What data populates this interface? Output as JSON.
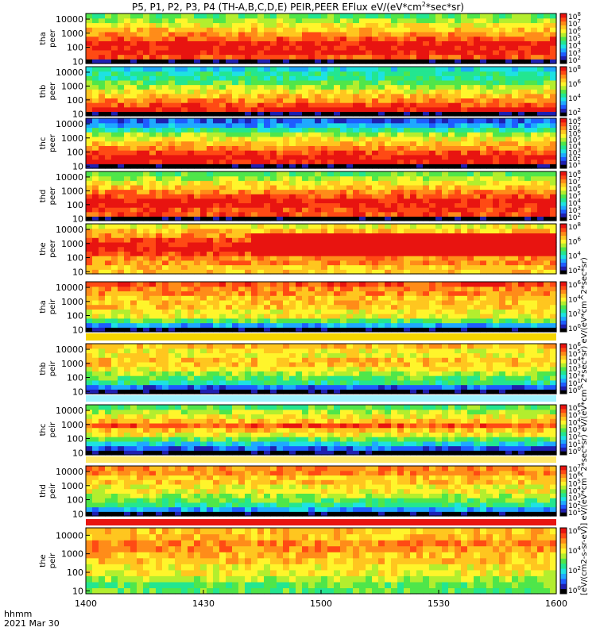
{
  "title": "P5, P1, P2, P3, P4 (TH-A,B,C,D,E) PEIR,PEER EFlux eV/(eV*cm²*sec*sr)",
  "colorbar_label": "[eV/(cm2-s-sr-eV)]  eV/(eV*cm^2*sec*sr)  eV/(eV*cm^2*sec*sr)  eV/(eV*cm^2*sec*sr)",
  "x_axis": {
    "time_format_label": "hhmm",
    "date_label": "2021 Mar 30",
    "tick_labels": [
      "1400",
      "1430",
      "1500",
      "1530",
      "1600"
    ]
  },
  "chart_data": {
    "type": "heatmap",
    "title": "P5, P1, P2, P3, P4 (TH-A,B,C,D,E) PEIR,PEER EFlux eV/(eV*cm^2*sec*sr)",
    "x": {
      "label": "hhmm",
      "start": "1400",
      "end": "1600",
      "ticks": [
        "1400",
        "1430",
        "1500",
        "1530",
        "1600"
      ]
    },
    "y_scale": "log",
    "panels": [
      {
        "ylabel": [
          "tha",
          "peer"
        ],
        "yticks": [
          "10",
          "100",
          "1000",
          "10000"
        ],
        "ylim": [
          7,
          25000
        ],
        "cbar_ticks": [
          {
            "base": "10",
            "exp": "2"
          },
          {
            "base": "10",
            "exp": "3"
          },
          {
            "base": "10",
            "exp": "4"
          },
          {
            "base": "10",
            "exp": "5"
          },
          {
            "base": "10",
            "exp": "6"
          },
          {
            "base": "10",
            "exp": "7"
          },
          {
            "base": "10",
            "exp": "8"
          }
        ]
      },
      {
        "ylabel": [
          "thb",
          "peer"
        ],
        "yticks": [
          "10",
          "100",
          "1000",
          "10000"
        ],
        "ylim": [
          7,
          25000
        ],
        "cbar_ticks": [
          {
            "base": "10",
            "exp": "2"
          },
          {
            "base": "10",
            "exp": "4"
          },
          {
            "base": "10",
            "exp": "6"
          },
          {
            "base": "10",
            "exp": "8"
          }
        ]
      },
      {
        "ylabel": [
          "thc",
          "peer"
        ],
        "yticks": [
          "10",
          "100",
          "1000",
          "10000"
        ],
        "ylim": [
          7,
          25000
        ],
        "cbar_ticks": [
          {
            "base": "10",
            "exp": "1"
          },
          {
            "base": "10",
            "exp": "2"
          },
          {
            "base": "10",
            "exp": "3"
          },
          {
            "base": "10",
            "exp": "4"
          },
          {
            "base": "10",
            "exp": "5"
          },
          {
            "base": "10",
            "exp": "6"
          },
          {
            "base": "10",
            "exp": "7"
          },
          {
            "base": "10",
            "exp": "8"
          }
        ]
      },
      {
        "ylabel": [
          "thd",
          "peer"
        ],
        "yticks": [
          "10",
          "100",
          "1000",
          "10000"
        ],
        "ylim": [
          7,
          25000
        ],
        "cbar_ticks": [
          {
            "base": "10",
            "exp": "2"
          },
          {
            "base": "10",
            "exp": "3"
          },
          {
            "base": "10",
            "exp": "4"
          },
          {
            "base": "10",
            "exp": "5"
          },
          {
            "base": "10",
            "exp": "6"
          },
          {
            "base": "10",
            "exp": "7"
          },
          {
            "base": "10",
            "exp": "8"
          }
        ]
      },
      {
        "ylabel": [
          "the",
          "peer"
        ],
        "yticks": [
          "10",
          "100",
          "1000",
          "10000"
        ],
        "ylim": [
          7,
          25000
        ],
        "cbar_ticks": [
          {
            "base": "10",
            "exp": "2"
          },
          {
            "base": "10",
            "exp": "4"
          },
          {
            "base": "10",
            "exp": "6"
          },
          {
            "base": "10",
            "exp": "8"
          }
        ]
      },
      {
        "ylabel": [
          "tha",
          "peir"
        ],
        "yticks": [
          "10",
          "100",
          "1000",
          "10000"
        ],
        "ylim": [
          7,
          25000
        ],
        "cbar_ticks": [
          {
            "base": "10",
            "exp": "0"
          },
          {
            "base": "10",
            "exp": "2"
          },
          {
            "base": "10",
            "exp": "4"
          },
          {
            "base": "10",
            "exp": "6"
          }
        ]
      },
      {
        "ylabel": [
          "thb",
          "peir"
        ],
        "yticks": [
          "10",
          "100",
          "1000",
          "10000"
        ],
        "ylim": [
          7,
          25000
        ],
        "cbar_ticks": [
          {
            "base": "10",
            "exp": "0"
          },
          {
            "base": "10",
            "exp": "1"
          },
          {
            "base": "10",
            "exp": "2"
          },
          {
            "base": "10",
            "exp": "3"
          },
          {
            "base": "10",
            "exp": "4"
          },
          {
            "base": "10",
            "exp": "5"
          },
          {
            "base": "10",
            "exp": "6"
          }
        ]
      },
      {
        "ylabel": [
          "thc",
          "peir"
        ],
        "yticks": [
          "10",
          "100",
          "1000",
          "10000"
        ],
        "ylim": [
          7,
          25000
        ],
        "cbar_ticks": [
          {
            "base": "10",
            "exp": "0"
          },
          {
            "base": "10",
            "exp": "1"
          },
          {
            "base": "10",
            "exp": "2"
          },
          {
            "base": "10",
            "exp": "3"
          },
          {
            "base": "10",
            "exp": "4"
          },
          {
            "base": "10",
            "exp": "5"
          },
          {
            "base": "10",
            "exp": "6"
          }
        ]
      },
      {
        "ylabel": [
          "thd",
          "peir"
        ],
        "yticks": [
          "10",
          "100",
          "1000",
          "10000"
        ],
        "ylim": [
          7,
          25000
        ],
        "cbar_ticks": [
          {
            "base": "10",
            "exp": "1"
          },
          {
            "base": "10",
            "exp": "2"
          },
          {
            "base": "10",
            "exp": "3"
          },
          {
            "base": "10",
            "exp": "4"
          },
          {
            "base": "10",
            "exp": "5"
          },
          {
            "base": "10",
            "exp": "6"
          },
          {
            "base": "10",
            "exp": "7"
          }
        ]
      },
      {
        "ylabel": [
          "the",
          "peir"
        ],
        "yticks": [
          "10",
          "100",
          "1000",
          "10000"
        ],
        "ylim": [
          7,
          25000
        ],
        "cbar_ticks": [
          {
            "base": "10",
            "exp": "0"
          },
          {
            "base": "10",
            "exp": "2"
          },
          {
            "base": "10",
            "exp": "4"
          },
          {
            "base": "10",
            "exp": "6"
          }
        ]
      }
    ],
    "colormap": [
      "#000000",
      "#1f1fb0",
      "#1e5cff",
      "#1ea9ff",
      "#1ee2e2",
      "#23e690",
      "#4fe64a",
      "#b3ee2e",
      "#fff52b",
      "#ffc61f",
      "#ff8c19",
      "#ff4a14",
      "#e81410"
    ]
  }
}
